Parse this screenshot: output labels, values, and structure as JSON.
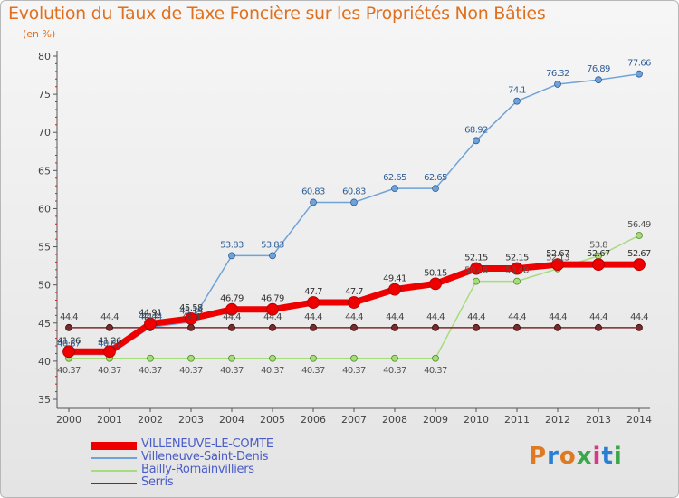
{
  "header": {
    "title": "Evolution du Taux de Taxe Foncière sur les Propriétés Non Bâties",
    "unit": "(en %)"
  },
  "logo": {
    "text": "Proxiti",
    "colors": [
      "#e07a1f",
      "#2a7fd4",
      "#e07a1f",
      "#3aa84a",
      "#d43a8a",
      "#2a7fd4",
      "#3aa84a"
    ]
  },
  "chart_data": {
    "type": "line",
    "x": [
      "2000",
      "2001",
      "2002",
      "2003",
      "2004",
      "2005",
      "2006",
      "2007",
      "2008",
      "2009",
      "2010",
      "2011",
      "2012",
      "2013",
      "2014"
    ],
    "ylim": [
      35,
      80
    ],
    "yticks": [
      "35",
      "40",
      "45",
      "50",
      "55",
      "60",
      "65",
      "70",
      "75",
      "80"
    ],
    "grid": false,
    "legend_position": "bottom-left",
    "series": [
      {
        "name": "VILLENEUVE-LE-COMTE",
        "color": "#ee0000",
        "values": [
          41.26,
          41.26,
          44.91,
          45.58,
          46.79,
          46.79,
          47.7,
          47.7,
          49.41,
          50.15,
          52.15,
          52.15,
          52.67,
          52.67,
          52.67
        ],
        "labels": [
          "41.26",
          "41.26",
          "44.91",
          "45.58",
          "46.79",
          "46.79",
          "47.7",
          "47.7",
          "49.41",
          "50.15",
          "52.15",
          "52.15",
          "52.67",
          "52.67",
          "52.67"
        ]
      },
      {
        "name": "Villeneuve-Saint-Denis",
        "color": "#6fa3d8",
        "values": [
          40.87,
          40.87,
          44.44,
          45.14,
          53.83,
          53.83,
          60.83,
          60.83,
          62.65,
          62.65,
          68.92,
          74.1,
          76.32,
          76.89,
          77.66
        ],
        "labels": [
          "40.87",
          "40.87",
          "44.44",
          "45.14",
          "53.83",
          "53.83",
          "60.83",
          "60.83",
          "62.65",
          "62.65",
          "68.92",
          "74.1",
          "76.32",
          "76.89",
          "77.66"
        ]
      },
      {
        "name": "Bailly-Romainvilliers",
        "color": "#a6dc7c",
        "values": [
          40.37,
          40.37,
          40.37,
          40.37,
          40.37,
          40.37,
          40.37,
          40.37,
          40.37,
          40.37,
          50.48,
          50.48,
          52.13,
          53.8,
          56.49
        ],
        "labels": [
          "40.37",
          "40.37",
          "40.37",
          "40.37",
          "40.37",
          "40.37",
          "40.37",
          "40.37",
          "40.37",
          "40.37",
          "50.48",
          "50.48",
          "52.13",
          "53.8",
          "56.49"
        ]
      },
      {
        "name": "Serris",
        "color": "#7a2a2a",
        "values": [
          44.4,
          44.4,
          44.4,
          44.4,
          44.4,
          44.4,
          44.4,
          44.4,
          44.4,
          44.4,
          44.4,
          44.4,
          44.4,
          44.4,
          44.4
        ],
        "labels": [
          "44.4",
          "44.4",
          "44.4",
          "44.4",
          "44.4",
          "44.4",
          "44.4",
          "44.4",
          "44.4",
          "44.4",
          "44.4",
          "44.4",
          "44.4",
          "44.4",
          "44.4"
        ]
      }
    ]
  }
}
